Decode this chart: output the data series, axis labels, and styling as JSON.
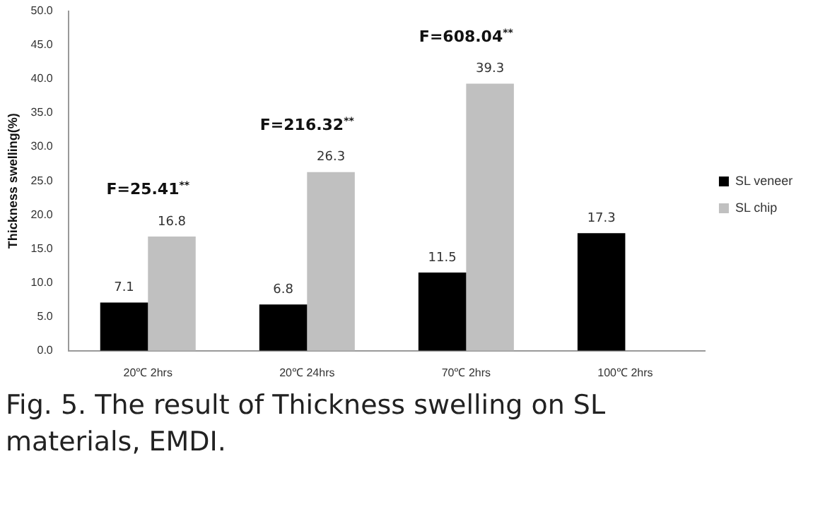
{
  "chart_data": {
    "type": "bar",
    "ylabel": "Thickness swelling(%)",
    "categories": [
      "20℃ 2hrs",
      "20℃ 24hrs",
      "70℃ 2hrs",
      "100℃ 2hrs"
    ],
    "series": [
      {
        "name": "SL veneer",
        "color": "#000000",
        "values": [
          7.1,
          6.8,
          11.5,
          17.3
        ]
      },
      {
        "name": "SL chip",
        "color": "#c0c0c0",
        "values": [
          16.8,
          26.3,
          39.3,
          null
        ]
      }
    ],
    "ylim": [
      0,
      50
    ],
    "yticks": [
      {
        "value": 0,
        "label": "0.0"
      },
      {
        "value": 5,
        "label": "5.0"
      },
      {
        "value": 10,
        "label": "10.0"
      },
      {
        "value": 15,
        "label": "15.0"
      },
      {
        "value": 20,
        "label": "20.0"
      },
      {
        "value": 25,
        "label": "25.0"
      },
      {
        "value": 30,
        "label": "30.0"
      },
      {
        "value": 35,
        "label": "35.0"
      },
      {
        "value": 40,
        "label": "40.0"
      },
      {
        "value": 45,
        "label": "45.0"
      },
      {
        "value": 50,
        "label": "50.0"
      }
    ],
    "data_labels": true,
    "legend": "right",
    "grid": false,
    "annotations": [
      "F=25.41$^{**}$",
      "F=216.32$^{**}$",
      "F=608.04$^{**}$",
      "Fig. 5. The result of Thickness swelling on SL materials, EMDI."
    ]
  }
}
